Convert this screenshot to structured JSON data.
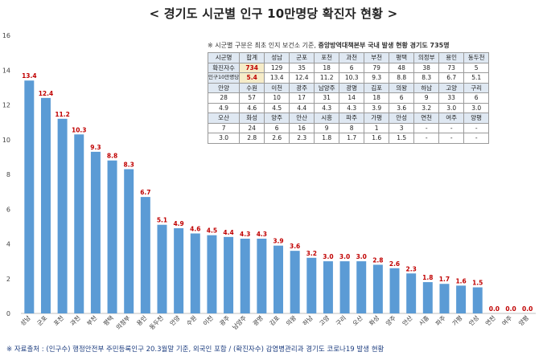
{
  "title": "< 경기도 시군별 인구 10만명당 확진자 현황 >",
  "chart_data": {
    "type": "bar",
    "categories": [
      "성남",
      "군포",
      "포천",
      "과천",
      "부천",
      "평택",
      "의정부",
      "용인",
      "동두천",
      "안양",
      "수원",
      "이천",
      "광주",
      "남양주",
      "광명",
      "김포",
      "의왕",
      "하남",
      "고양",
      "구리",
      "오산",
      "화성",
      "양주",
      "안산",
      "시흥",
      "파주",
      "가평",
      "안성",
      "연천",
      "여주",
      "양평"
    ],
    "values": [
      13.4,
      12.4,
      11.2,
      10.3,
      9.3,
      8.8,
      8.3,
      6.7,
      5.1,
      4.9,
      4.6,
      4.5,
      4.4,
      4.3,
      4.3,
      3.9,
      3.6,
      3.2,
      3.0,
      3.0,
      3.0,
      2.8,
      2.6,
      2.3,
      1.8,
      1.7,
      1.6,
      1.5,
      0.0,
      0.0,
      0.0
    ],
    "value_labels": [
      "13.4",
      "12.4",
      "11.2",
      "10.3",
      "9.3",
      "8.8",
      "8.3",
      "6.7",
      "5.1",
      "4.9",
      "4.6",
      "4.5",
      "4.4",
      "4.3",
      "4.3",
      "3.9",
      "3.6",
      "3.2",
      "3.0",
      "3.0",
      "3.0",
      "2.8",
      "2.6",
      "2.3",
      "1.8",
      "1.7",
      "1.6",
      "1.5",
      "0.0",
      "0.0",
      "0.0"
    ],
    "ylim": [
      0,
      16
    ],
    "yticks": [
      "0",
      "2",
      "4",
      "6",
      "8",
      "10",
      "12",
      "14",
      "16"
    ],
    "grid": false,
    "legend": "none",
    "bar_color": "#5b9bd5",
    "label_color": "#c00000"
  },
  "table_note": {
    "prefix": "※ 시군별 구분은 최초 인지 보건소 기준, ",
    "bold": "중앙방역대책본부 국내 발생 현황 경기도 735명"
  },
  "table": [
    [
      "시군명",
      "합계",
      "성남",
      "군포",
      "포천",
      "과천",
      "부천",
      "평택",
      "의정부",
      "용인",
      "동두천"
    ],
    [
      "확진자수",
      "734",
      "129",
      "35",
      "18",
      "6",
      "79",
      "48",
      "38",
      "73",
      "5"
    ],
    [
      "인구10만명당",
      "5.4",
      "13.4",
      "12.4",
      "11.2",
      "10.3",
      "9.3",
      "8.8",
      "8.3",
      "6.7",
      "5.1"
    ],
    [
      "안양",
      "수원",
      "이천",
      "광주",
      "남양주",
      "광명",
      "김포",
      "의왕",
      "하남",
      "고양",
      "구리"
    ],
    [
      "28",
      "57",
      "10",
      "17",
      "31",
      "14",
      "18",
      "6",
      "9",
      "33",
      "6"
    ],
    [
      "4.9",
      "4.6",
      "4.5",
      "4.4",
      "4.3",
      "4.3",
      "3.9",
      "3.6",
      "3.2",
      "3.0",
      "3.0"
    ],
    [
      "오산",
      "화성",
      "양주",
      "안산",
      "시흥",
      "파주",
      "가평",
      "안성",
      "연천",
      "여주",
      "양평"
    ],
    [
      "7",
      "24",
      "6",
      "16",
      "9",
      "8",
      "1",
      "3",
      "-",
      "-",
      "-"
    ],
    [
      "3.0",
      "2.8",
      "2.6",
      "2.3",
      "1.8",
      "1.7",
      "1.6",
      "1.5",
      "-",
      "-",
      "-"
    ]
  ],
  "source": "※ 자료출처 : (인구수) 행정안전부 주민등록인구 20.3월말 기준, 외국인 포함 / (확진자수) 감염병관리과 경기도 코로나19 발생 현황"
}
